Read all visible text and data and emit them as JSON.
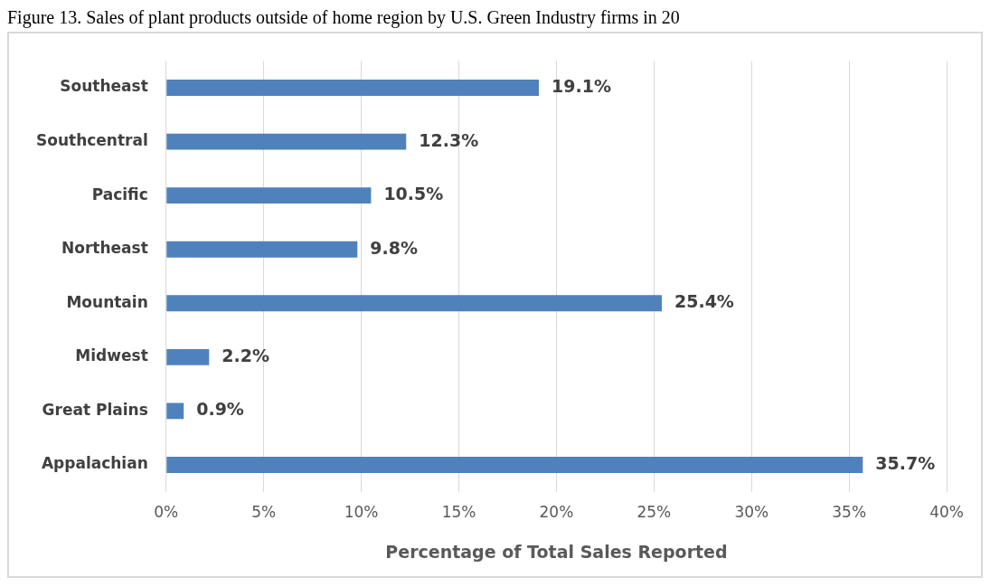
{
  "chart_data": {
    "type": "bar",
    "orientation": "horizontal",
    "title": "Figure 13. Sales of plant products outside of home region by U.S. Green Industry firms in 20",
    "xlabel": "Percentage of Total Sales Reported",
    "categories": [
      "Southeast",
      "Southcentral",
      "Pacific",
      "Northeast",
      "Mountain",
      "Midwest",
      "Great Plains",
      "Appalachian"
    ],
    "values": [
      19.1,
      12.3,
      10.5,
      9.8,
      25.4,
      2.2,
      0.9,
      35.7
    ],
    "value_labels": [
      "19.1%",
      "12.3%",
      "10.5%",
      "9.8%",
      "25.4%",
      "2.2%",
      "0.9%",
      "35.7%"
    ],
    "color": "#4f81bd",
    "xlim": [
      0,
      40
    ],
    "xticks": [
      {
        "value": 0,
        "label": "0%"
      },
      {
        "value": 5,
        "label": "5%"
      },
      {
        "value": 10,
        "label": "10%"
      },
      {
        "value": 15,
        "label": "15%"
      },
      {
        "value": 20,
        "label": "20%"
      },
      {
        "value": 25,
        "label": "25%"
      },
      {
        "value": 30,
        "label": "30%"
      },
      {
        "value": 35,
        "label": "35%"
      },
      {
        "value": 40,
        "label": "40%"
      }
    ],
    "grid": "x",
    "legend": false
  }
}
